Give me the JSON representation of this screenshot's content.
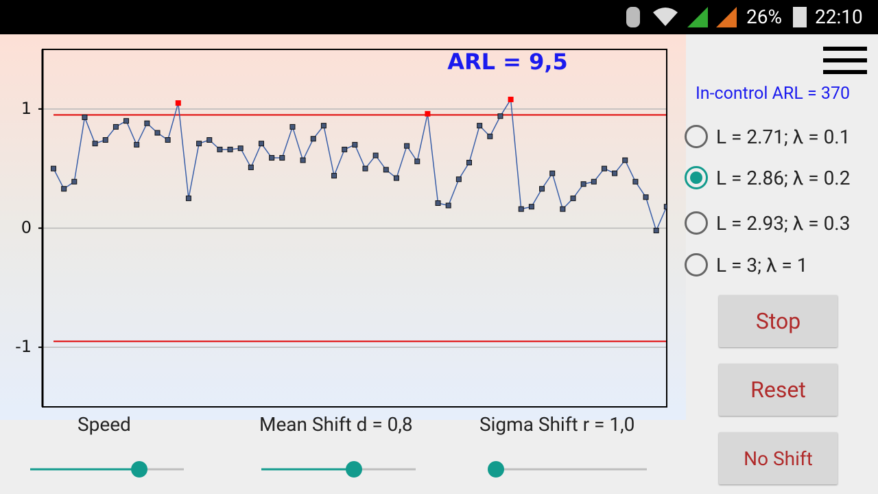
{
  "status_bar": {
    "battery": "26%",
    "time": "22:10"
  },
  "chart_data": {
    "type": "line",
    "annotation": "ARL = 9,5",
    "ylim": [
      -1.5,
      1.5
    ],
    "yticks": [
      -1,
      0,
      1
    ],
    "grid": true,
    "ucl": 0.95,
    "lcl": -0.95,
    "limit_color": "#e00000",
    "alarm_color": "#ff0000",
    "series": [
      {
        "color": "#3a5fa8",
        "marker_color": "#45577a",
        "values": [
          0.5,
          0.33,
          0.39,
          0.93,
          0.71,
          0.74,
          0.85,
          0.9,
          0.7,
          0.88,
          0.8,
          0.74,
          1.05,
          0.25,
          0.71,
          0.74,
          0.66,
          0.66,
          0.67,
          0.51,
          0.71,
          0.59,
          0.59,
          0.85,
          0.57,
          0.75,
          0.86,
          0.44,
          0.66,
          0.7,
          0.5,
          0.61,
          0.49,
          0.42,
          0.69,
          0.56,
          0.96,
          0.21,
          0.19,
          0.41,
          0.55,
          0.86,
          0.77,
          0.94,
          1.08,
          0.16,
          0.18,
          0.33,
          0.46,
          0.16,
          0.25,
          0.37,
          0.39,
          0.5,
          0.46,
          0.57,
          0.39,
          0.26,
          -0.02,
          0.18
        ]
      }
    ]
  },
  "sliders": [
    {
      "label": "Speed",
      "position": 0.71
    },
    {
      "label": "Mean Shift d = 0,8",
      "position": 0.6
    },
    {
      "label": "Sigma Shift r = 1,0",
      "position": 0.0
    }
  ],
  "panel": {
    "in_control_arl": "In-control ARL = 370",
    "selected": 1,
    "options": [
      "L = 2.71; λ = 0.1",
      "L = 2.86; λ = 0.2",
      "L = 2.93; λ = 0.3",
      "L = 3; λ = 1"
    ],
    "buttons": [
      "Stop",
      "Reset",
      "No Shift"
    ]
  }
}
